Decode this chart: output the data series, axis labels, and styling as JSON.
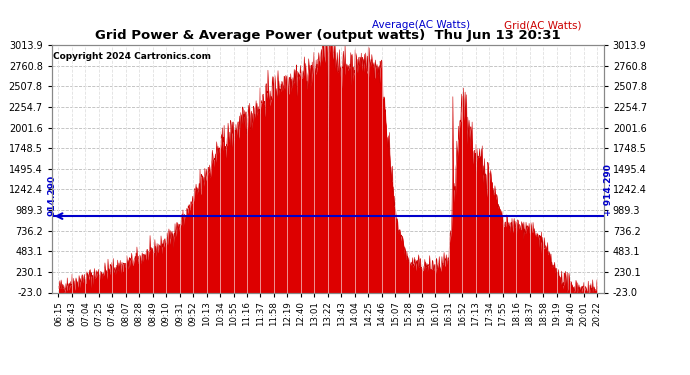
{
  "title": "Grid Power & Average Power (output watts)  Thu Jun 13 20:31",
  "copyright": "Copyright 2024 Cartronics.com",
  "legend_avg": "Average(AC Watts)",
  "legend_grid": "Grid(AC Watts)",
  "avg_value": 914.29,
  "avg_label": "914.290",
  "y_min": -23.0,
  "y_max": 3013.9,
  "yticks": [
    -23.0,
    230.1,
    483.1,
    736.2,
    989.3,
    1242.4,
    1495.4,
    1748.5,
    2001.6,
    2254.7,
    2507.8,
    2760.8,
    3013.9
  ],
  "background_color": "#ffffff",
  "fill_color": "#dd0000",
  "line_color": "#cc0000",
  "avg_line_color": "#0000cc",
  "grid_color": "#bbbbbb",
  "title_color": "#000000",
  "copyright_color": "#000000",
  "legend_avg_color": "#0000cc",
  "legend_grid_color": "#cc0000",
  "xtick_labels": [
    "06:15",
    "06:43",
    "07:04",
    "07:25",
    "07:46",
    "08:07",
    "08:28",
    "08:49",
    "09:10",
    "09:31",
    "09:52",
    "10:13",
    "10:34",
    "10:55",
    "11:16",
    "11:37",
    "11:58",
    "12:19",
    "12:40",
    "13:01",
    "13:22",
    "13:43",
    "14:04",
    "14:25",
    "14:46",
    "15:07",
    "15:28",
    "15:49",
    "16:10",
    "16:31",
    "16:52",
    "17:13",
    "17:34",
    "17:55",
    "18:16",
    "18:37",
    "18:58",
    "19:19",
    "19:40",
    "20:01",
    "20:22"
  ],
  "n_points": 41,
  "data_profile": [
    30,
    100,
    150,
    210,
    270,
    320,
    400,
    480,
    600,
    800,
    1100,
    1450,
    1750,
    1950,
    2100,
    2300,
    2480,
    2580,
    2650,
    2700,
    3050,
    2750,
    2780,
    2820,
    2700,
    920,
    350,
    300,
    290,
    350,
    2380,
    1600,
    1450,
    820,
    790,
    770,
    580,
    200,
    70,
    25,
    10
  ],
  "noise_seed": 42,
  "noise_scale": 55,
  "sub_points": 30
}
